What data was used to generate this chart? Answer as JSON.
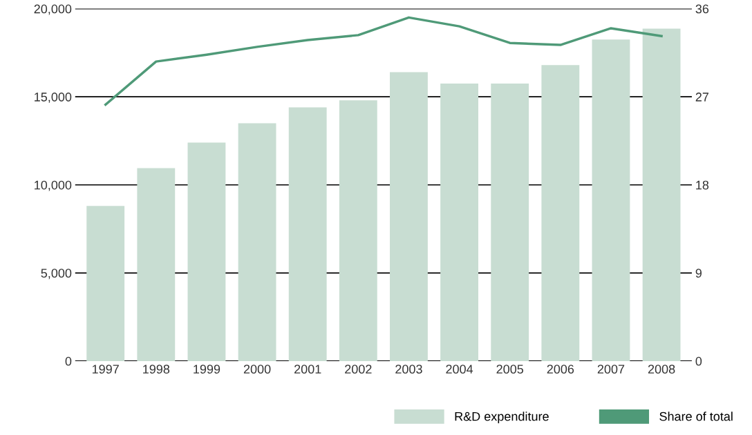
{
  "chart_data": {
    "type": "bar",
    "categories": [
      "1997",
      "1998",
      "1999",
      "2000",
      "2001",
      "2002",
      "2003",
      "2004",
      "2005",
      "2006",
      "2007",
      "2008"
    ],
    "series": [
      {
        "name": "R&D expenditure",
        "color": "#c8ddd2",
        "values": [
          8800,
          10950,
          12400,
          13500,
          14400,
          14800,
          16400,
          15750,
          15750,
          16800,
          18250,
          18870
        ]
      },
      {
        "name": "Share of total",
        "type": "line",
        "axis": "y2",
        "color": "#4f9a78",
        "values": [
          26.2,
          30.6,
          31.3,
          32.1,
          32.8,
          33.3,
          35.1,
          34.2,
          32.5,
          32.3,
          34.0,
          33.2
        ]
      }
    ],
    "ylim": [
      0,
      20000
    ],
    "yticks": [
      0,
      {
        "value": 5000,
        "label": "5,000"
      },
      {
        "value": 10000,
        "label": "10,000"
      },
      {
        "value": 15000,
        "label": "15,000"
      },
      {
        "value": 20000,
        "label": "20,000"
      }
    ],
    "y2lim": [
      0,
      36
    ],
    "y2ticks": [
      0,
      9,
      18,
      27,
      36
    ],
    "grid": "y",
    "legend": "bottom right"
  }
}
